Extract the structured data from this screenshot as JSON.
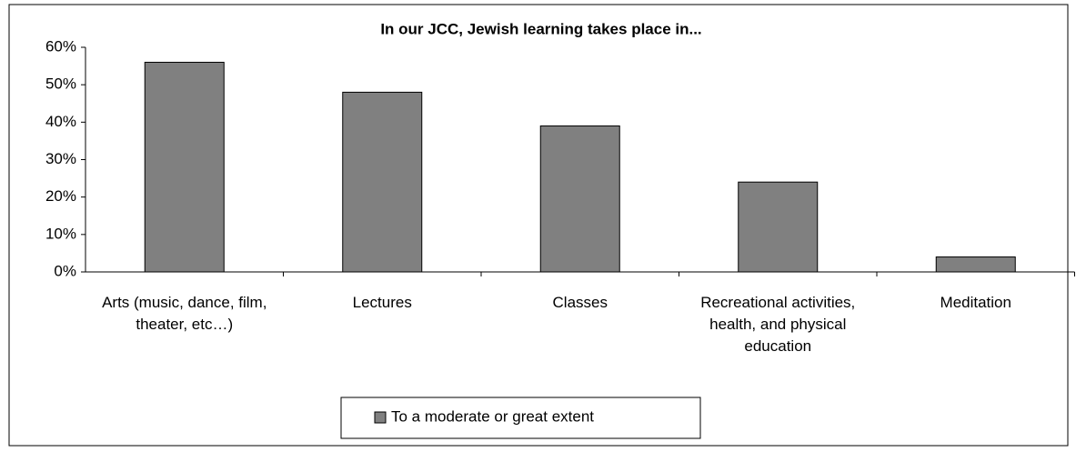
{
  "chart_data": {
    "type": "bar",
    "title": "In our JCC, Jewish learning takes place in...",
    "categories": [
      "Arts (music, dance, film, theater, etc…)",
      "Lectures",
      "Classes",
      "Recreational activities, health, and physical education",
      "Meditation"
    ],
    "series": [
      {
        "name": "To a moderate or great extent",
        "color": "#808080",
        "values": [
          56,
          48,
          39,
          24,
          4
        ]
      }
    ],
    "ylim": [
      0,
      60
    ],
    "yticks": [
      {
        "value": 0,
        "label": "0%"
      },
      {
        "value": 10,
        "label": "10%"
      },
      {
        "value": 20,
        "label": "20%"
      },
      {
        "value": 30,
        "label": "30%"
      },
      {
        "value": 40,
        "label": "40%"
      },
      {
        "value": 50,
        "label": "50%"
      },
      {
        "value": 60,
        "label": "60%"
      }
    ],
    "legend": "bottom"
  }
}
